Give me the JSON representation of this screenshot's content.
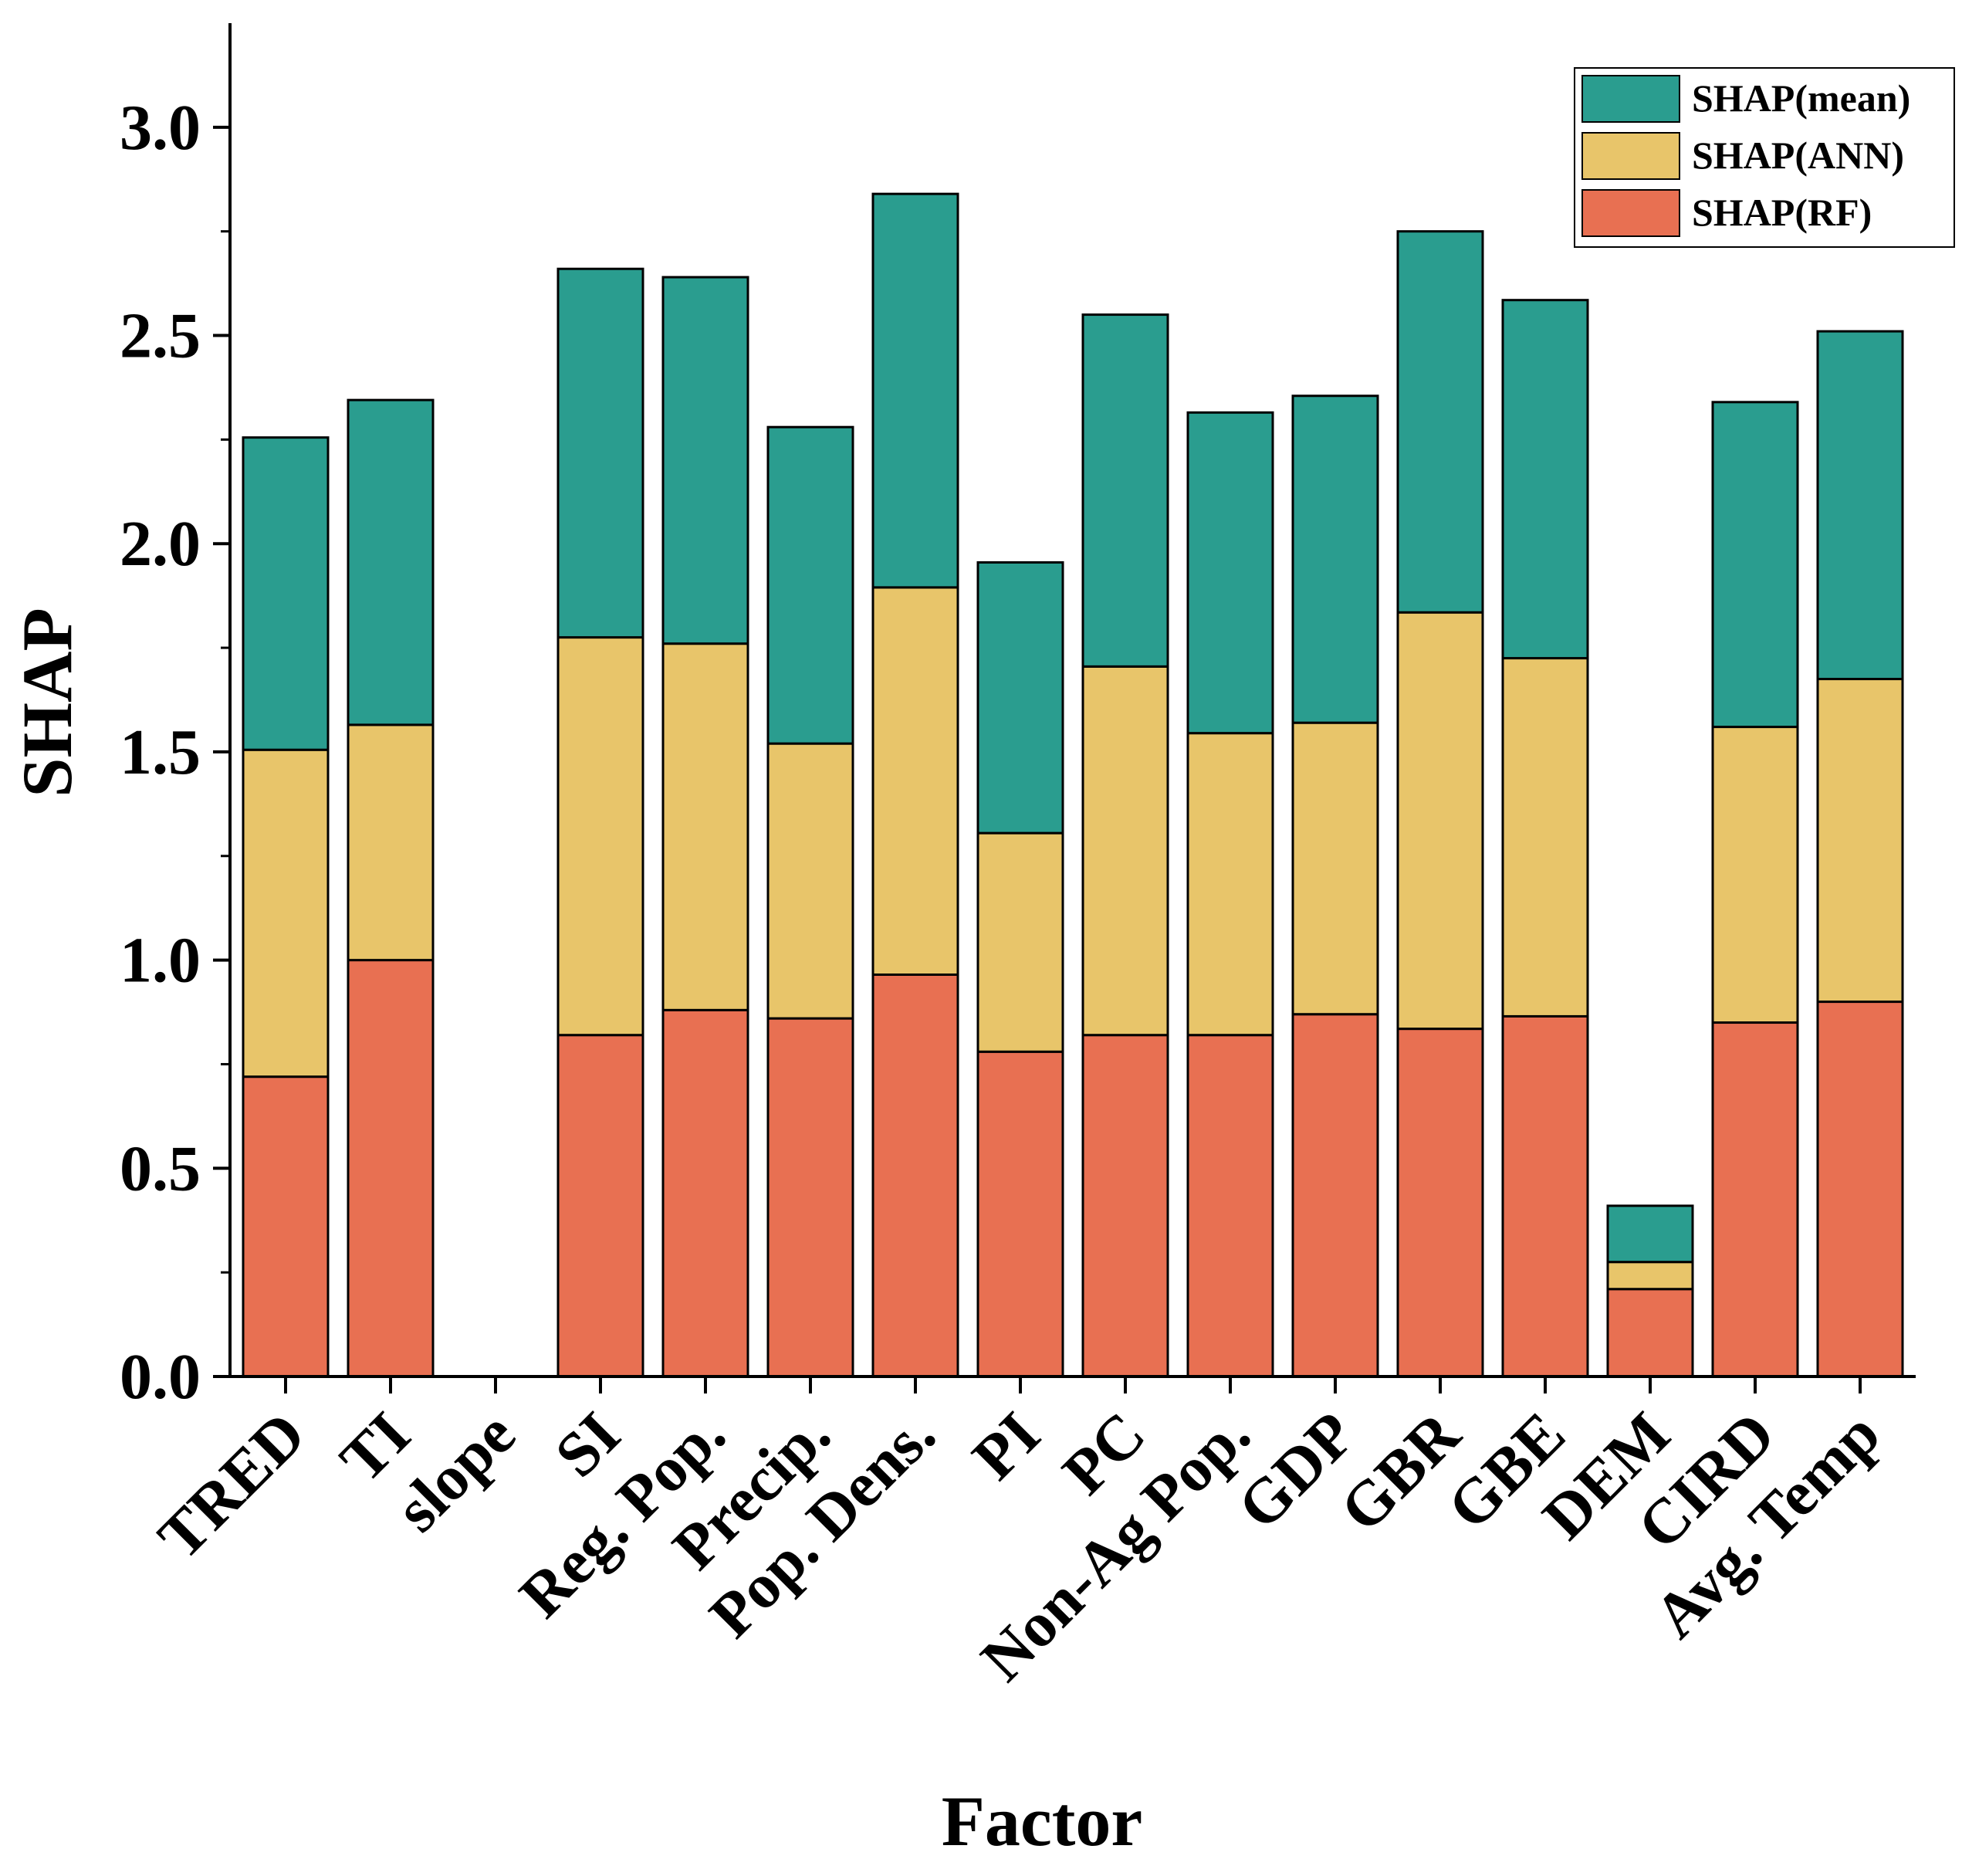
{
  "chart_data": {
    "type": "bar",
    "stacked": true,
    "categories": [
      "TRED",
      "TI",
      "slope",
      "SI",
      "Reg. Pop.",
      "Precip.",
      "Pop. Dens.",
      "PI",
      "PC",
      "Non-Ag Pop.",
      "GDP",
      "GBR",
      "GBE",
      "DEM",
      "CIRD",
      "Avg. Temp"
    ],
    "series": [
      {
        "name": "SHAP(RF)",
        "color": "#E87052",
        "values": [
          0.72,
          1.0,
          0.0,
          0.82,
          0.88,
          0.86,
          0.965,
          0.78,
          0.82,
          0.82,
          0.87,
          0.835,
          0.865,
          0.21,
          0.85,
          0.9
        ]
      },
      {
        "name": "SHAP(ANN)",
        "color": "#E8C56A",
        "values": [
          0.785,
          0.565,
          0.0,
          0.955,
          0.88,
          0.66,
          0.93,
          0.525,
          0.885,
          0.725,
          0.7,
          1.0,
          0.86,
          0.065,
          0.71,
          0.775
        ]
      },
      {
        "name": "SHAP(mean)",
        "color": "#2A9D8F",
        "values": [
          0.75,
          0.78,
          0.0,
          0.885,
          0.88,
          0.76,
          0.945,
          0.65,
          0.845,
          0.77,
          0.785,
          0.915,
          0.86,
          0.135,
          0.78,
          0.835
        ]
      }
    ],
    "xlabel": "Factor",
    "ylabel": "SHAP",
    "ylim": [
      0,
      3.25
    ],
    "yticks": [
      "0.0",
      "0.5",
      "1.0",
      "1.5",
      "2.0",
      "2.5",
      "3.0"
    ],
    "grid": false,
    "legend": {
      "position": "top-right",
      "entries": [
        "SHAP(mean)",
        "SHAP(ANN)",
        "SHAP(RF)"
      ]
    }
  }
}
